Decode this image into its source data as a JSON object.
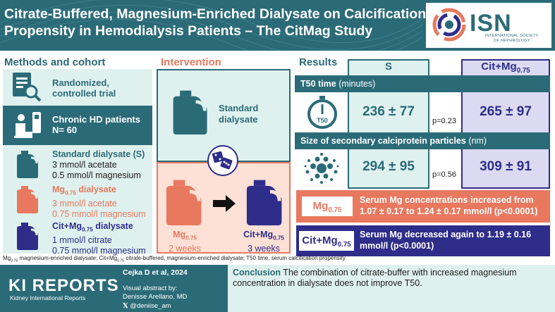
{
  "header": {
    "title_line1": "Citrate-Buffered, Magnesium-Enriched Dialysate on Calcification",
    "title_line2": "Propensity in Hemodialysis Patients – The CitMag Study",
    "logo_text": "ISN",
    "logo_sub1": "INTERNATIONAL SOCIETY",
    "logo_sub2": "OF NEPHROLOGY"
  },
  "methods": {
    "title": "Methods and cohort",
    "design_line1": "Randomized,",
    "design_line2": "controlled trial",
    "cohort_line1": "Chronic HD patients",
    "cohort_line2": "N= 60",
    "arms": [
      {
        "name": "Standard dialysate (S)",
        "line1": "3 mmol/l acetate",
        "line2": "0.5 mmol/l magnesium",
        "color": "#2b6b78"
      },
      {
        "name_pre": "Mg",
        "name_sub": "0.75",
        "name_post": " dialysate",
        "line1": "3 mmol/l acetate",
        "line2": "0.75 mmol/l magnesium",
        "color": "#e8795f"
      },
      {
        "name_pre": "Cit+Mg",
        "name_sub": "0.75",
        "name_post": " dialysate",
        "line1": "1 mmol/l citrate",
        "line2": "0.75 mmol/l magnesium",
        "color": "#2e2d8a"
      }
    ]
  },
  "intervention": {
    "title": "Intervention",
    "standard_line1": "Standard",
    "standard_line2": "dialysate",
    "mg_label_pre": "Mg",
    "mg_label_sub": "0.75",
    "mg_duration": "2 weeks",
    "cit_label_pre": "Cit+Mg",
    "cit_label_sub": "0.75",
    "cit_duration": "3 weeks"
  },
  "results": {
    "title": "Results",
    "col_s": "S",
    "col_cit_pre": "Cit+Mg",
    "col_cit_sub": "0.75",
    "t50_label": "T50 time",
    "t50_unit": " (minutes)",
    "t50_icon_text": "T50",
    "t50_s": "236 ± 77",
    "t50_p": "p=0.23",
    "t50_cit": "265 ± 97",
    "cpp_label": "Size of secondary calciprotein particles",
    "cpp_unit": " (nm)",
    "cpp_s": "294 ± 95",
    "cpp_p": "p=0.56",
    "cpp_cit": "309 ± 91",
    "mg_chip_pre": "Mg",
    "mg_chip_sub": "0.75",
    "mg_text_line1": "Serum Mg concentrations increased from",
    "mg_text_line2": "1.07 ± 0.17 to 1.24 ± 0.17 mmol/l (p<0.0001)",
    "cit_chip_pre": "Cit+Mg",
    "cit_chip_sub": "0.75",
    "cit_text_line1": "Serum Mg decreased again to 1.19 ± 0.16",
    "cit_text_line2": "mmol/l (p<0.0001)"
  },
  "footnote": {
    "a_pre": "Mg",
    "a_sub": "0.75",
    "a_post": " magnesium-enriched dialysate; Cit+Mg",
    "b_sub": "0.75",
    "b_post": " citrate-buffered, magnesium-enriched dialysate; T50 time, serum calcification propensity"
  },
  "footer": {
    "brand": "KI REPORTS",
    "brand_sub": "Kidney International Reports",
    "citation": "Cejka D et al, 2024",
    "va_by": "Visual abstract by:",
    "author": "Denisse Arellano, MD",
    "handle": "@deniise_am",
    "conclusion_label": "Conclusion",
    "conclusion_line1": " The combination of citrate-buffer with increased magnesium",
    "conclusion_line2": "concentration in dialysate does not improve T50."
  },
  "colors": {
    "teal": "#2b6b78",
    "light_teal": "#dff1ee",
    "coral": "#e8795f",
    "light_coral": "#fde0d6",
    "navy": "#2e2d8a",
    "lavender": "#dcdaf2"
  }
}
